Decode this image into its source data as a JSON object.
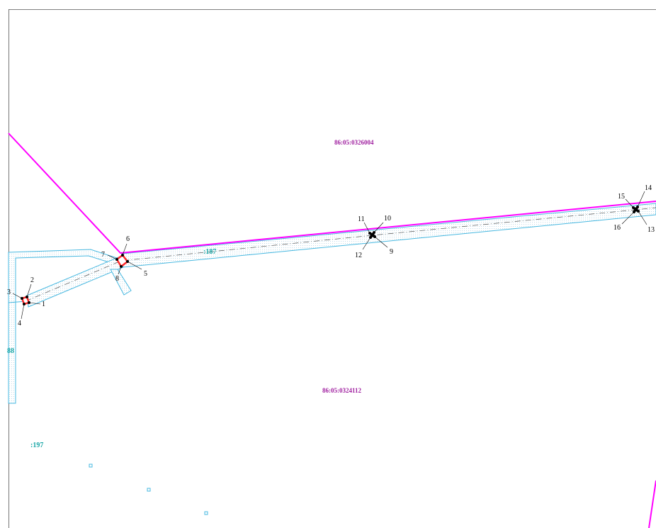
{
  "map": {
    "cadastral_blocks": [
      "86:05:0326004",
      "86:05:0324112"
    ],
    "parcel_labels": [
      ":187",
      "88",
      ":197"
    ],
    "point_numbers": [
      "1",
      "2",
      "3",
      "4",
      "5",
      "6",
      "7",
      "8",
      "9",
      "10",
      "11",
      "12",
      "13",
      "14",
      "15",
      "16"
    ],
    "colors": {
      "block_boundary": "#ff00ff",
      "block_label": "#a020a0",
      "parcel_outline": "#47b8e0",
      "parcel_label": "#1aa7a7",
      "marker_fill": "#ff2a2a",
      "marker_dot": "#000000"
    }
  }
}
